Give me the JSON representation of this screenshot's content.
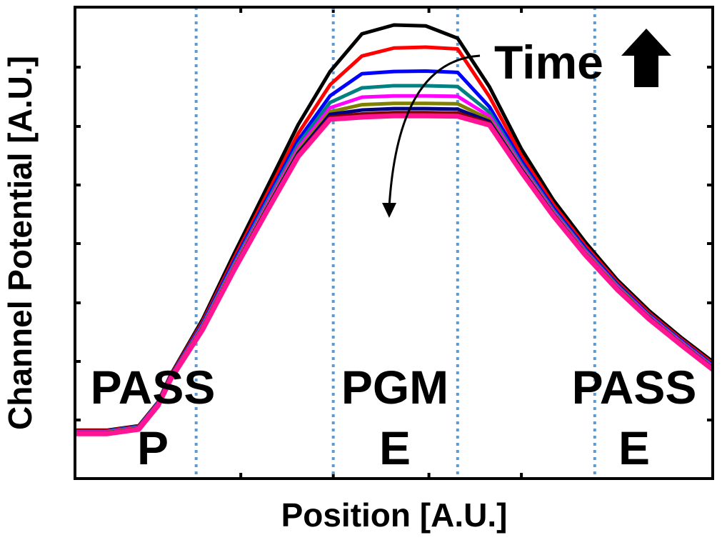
{
  "chart_data": {
    "type": "line",
    "xlabel": "Position [A.U.]",
    "ylabel": "Channel Potential [A.U.]",
    "xlim": [
      0,
      100
    ],
    "ylim": [
      0,
      100
    ],
    "grid": false,
    "x": [
      0,
      5,
      10,
      13,
      15,
      20,
      25,
      30,
      35,
      40,
      45,
      50,
      55,
      60,
      65,
      70,
      75,
      80,
      85,
      90,
      95,
      100
    ],
    "series": [
      {
        "name": "",
        "color": "#000000",
        "values": [
          8.5,
          8.5,
          9.5,
          14.8,
          21.0,
          33.5,
          48.5,
          63.0,
          77.5,
          89.5,
          98.0,
          100.0,
          99.8,
          97.0,
          86.0,
          72.0,
          60.5,
          51.0,
          42.5,
          35.5,
          29.5,
          24.0
        ]
      },
      {
        "name": "",
        "color": "#ff0000",
        "values": [
          8.4,
          8.4,
          9.4,
          14.7,
          20.8,
          33.0,
          47.5,
          61.5,
          75.5,
          86.5,
          93.0,
          94.8,
          95.0,
          94.6,
          83.8,
          70.5,
          59.5,
          50.2,
          42.0,
          35.0,
          29.1,
          23.6
        ]
      },
      {
        "name": "",
        "color": "#0000ff",
        "values": [
          8.3,
          8.3,
          9.3,
          14.6,
          20.6,
          32.6,
          46.8,
          60.5,
          74.0,
          84.0,
          89.0,
          89.5,
          89.6,
          89.3,
          81.5,
          69.3,
          58.7,
          49.6,
          41.5,
          34.6,
          28.8,
          23.2
        ]
      },
      {
        "name": "",
        "color": "#008080",
        "values": [
          8.2,
          8.2,
          9.2,
          14.5,
          20.5,
          32.3,
          46.2,
          59.8,
          73.0,
          82.5,
          85.8,
          86.3,
          86.3,
          86.1,
          80.3,
          68.6,
          58.2,
          49.2,
          41.2,
          34.4,
          28.6,
          23.0
        ]
      },
      {
        "name": "",
        "color": "#ff00ff",
        "values": [
          8.1,
          8.1,
          9.1,
          14.4,
          20.4,
          32.0,
          45.8,
          59.2,
          72.2,
          81.3,
          83.7,
          84.0,
          84.0,
          83.9,
          79.4,
          68.1,
          57.8,
          48.9,
          41.0,
          34.2,
          28.4,
          22.8
        ]
      },
      {
        "name": "",
        "color": "#808000",
        "values": [
          8.0,
          8.0,
          9.0,
          14.3,
          20.3,
          31.8,
          45.5,
          58.7,
          71.6,
          80.4,
          82.0,
          82.3,
          82.3,
          82.2,
          78.7,
          67.7,
          57.5,
          48.6,
          40.8,
          34.0,
          28.2,
          22.6
        ]
      },
      {
        "name": "",
        "color": "#000080",
        "values": [
          7.9,
          7.9,
          8.9,
          14.2,
          20.2,
          31.6,
          45.2,
          58.3,
          71.1,
          79.8,
          80.8,
          81.1,
          81.1,
          81.0,
          78.2,
          67.4,
          57.3,
          48.4,
          40.6,
          33.9,
          28.1,
          22.5
        ]
      },
      {
        "name": "",
        "color": "#800000",
        "values": [
          7.8,
          7.8,
          8.8,
          14.1,
          20.1,
          31.4,
          45.0,
          58.0,
          70.7,
          79.2,
          79.9,
          80.2,
          80.2,
          80.1,
          77.8,
          67.1,
          57.1,
          48.3,
          40.5,
          33.8,
          28.0,
          22.4
        ]
      },
      {
        "name": "",
        "color": "#ff1493",
        "values": [
          7.7,
          7.7,
          8.7,
          14.0,
          20.0,
          31.2,
          44.8,
          57.7,
          70.3,
          78.7,
          79.2,
          79.5,
          79.5,
          79.4,
          77.4,
          66.8,
          56.9,
          48.1,
          40.3,
          33.6,
          27.8,
          22.2
        ]
      }
    ],
    "vlines_x": [
      19,
      40.5,
      60,
      81.5
    ],
    "regions": [
      {
        "top": "PASS",
        "bottom": "P"
      },
      {
        "top": "PGM",
        "bottom": "E"
      },
      {
        "top": "PASS",
        "bottom": "E"
      }
    ],
    "annotation": "Time",
    "vline_color": "#5b9bd5"
  }
}
